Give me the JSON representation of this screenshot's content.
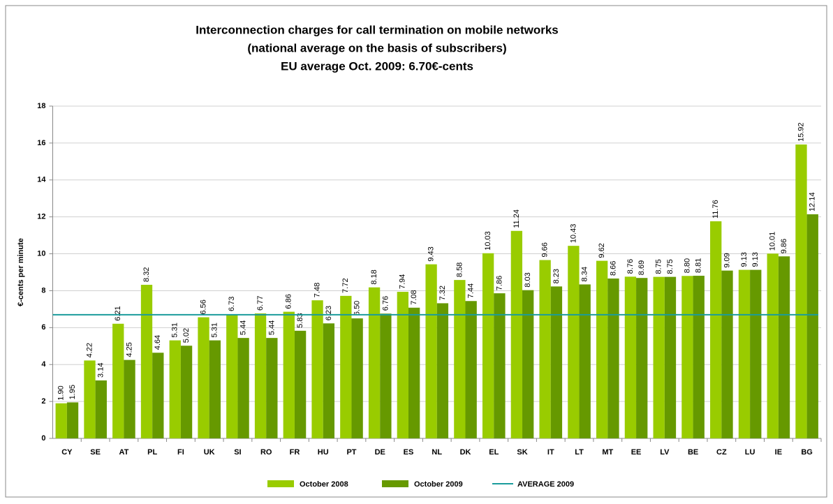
{
  "chart_data": {
    "type": "bar",
    "title": [
      "Interconnection charges for call termination on mobile networks",
      "(national average on the basis of subscribers)",
      "EU average Oct. 2009:  6.70€-cents"
    ],
    "y_label": "€-cents per minute",
    "categories": [
      "CY",
      "SE",
      "AT",
      "PL",
      "FI",
      "UK",
      "SI",
      "RO",
      "FR",
      "HU",
      "PT",
      "DE",
      "ES",
      "NL",
      "DK",
      "EL",
      "SK",
      "IT",
      "LT",
      "MT",
      "EE",
      "LV",
      "BE",
      "CZ",
      "LU",
      "IE",
      "BG"
    ],
    "series": [
      {
        "name": "October 2008",
        "color": "#99cc00",
        "values": [
          1.9,
          4.22,
          6.21,
          8.32,
          5.31,
          6.56,
          6.73,
          6.77,
          6.86,
          7.48,
          7.72,
          8.18,
          7.94,
          9.43,
          8.58,
          10.03,
          11.24,
          9.66,
          10.43,
          9.62,
          8.76,
          8.75,
          8.8,
          11.76,
          9.13,
          10.01,
          15.92
        ],
        "value_labels": [
          "1.90",
          "4.22",
          "6.21",
          "8.32",
          "5.31",
          "6.56",
          "6.73",
          "6.77",
          "6.86",
          "7.48",
          "7.72",
          "8.18",
          "7.94",
          "9.43",
          "8.58",
          "10.03",
          "11.24",
          "9.66",
          "10.43",
          "9.62",
          "8.76",
          "8.75",
          "8.80",
          "11.76",
          "9.13",
          "10.01",
          "15.92"
        ]
      },
      {
        "name": "October 2009",
        "color": "#669900",
        "values": [
          1.95,
          3.14,
          4.25,
          4.64,
          5.02,
          5.31,
          5.44,
          5.44,
          5.83,
          6.23,
          6.5,
          6.76,
          7.08,
          7.32,
          7.44,
          7.86,
          8.03,
          8.23,
          8.34,
          8.66,
          8.69,
          8.75,
          8.81,
          9.09,
          9.13,
          9.86,
          12.14
        ],
        "value_labels": [
          "1.95",
          "3.14",
          "4.25",
          "4.64",
          "5.02",
          "5.31",
          "5.44",
          "5.44",
          "5.83",
          "6.23",
          "6.50",
          "6.76",
          "7.08",
          "7.32",
          "7.44",
          "7.86",
          "8.03",
          "8.23",
          "8.34",
          "8.66",
          "8.69",
          "8.75",
          "8.81",
          "9.09",
          "9.13",
          "9.86",
          "12.14"
        ]
      }
    ],
    "average": {
      "name": "AVERAGE 2009",
      "value": 6.7,
      "color": "#1a9c9c"
    },
    "ylim": [
      0,
      18
    ],
    "yticks": [
      0,
      2,
      4,
      6,
      8,
      10,
      12,
      14,
      16,
      18
    ],
    "grid": true
  }
}
